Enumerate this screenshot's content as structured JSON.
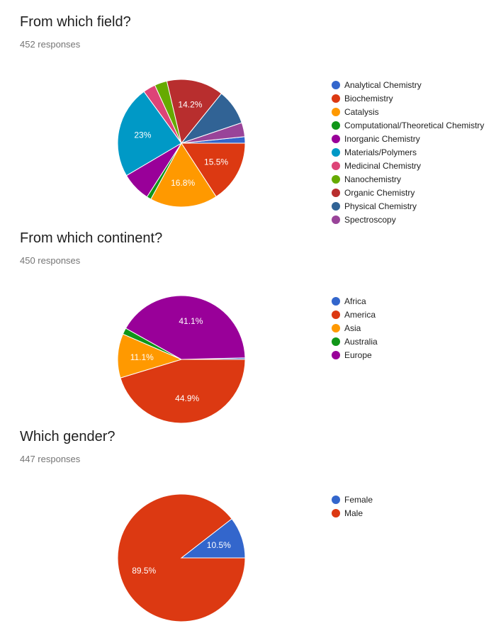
{
  "chart_data": [
    {
      "type": "pie",
      "title": "From which field?",
      "responses": "452 responses",
      "legend_position": "right",
      "slices": [
        {
          "label": "Analytical Chemistry",
          "value": 1.6,
          "color": "#3366cc",
          "show_label": false
        },
        {
          "label": "Biochemistry",
          "value": 15.5,
          "color": "#dc3912",
          "show_label": true
        },
        {
          "label": "Catalysis",
          "value": 16.8,
          "color": "#ff9900",
          "show_label": true
        },
        {
          "label": "Computational/Theoretical Chemistry",
          "value": 1.1,
          "color": "#109618",
          "show_label": false
        },
        {
          "label": "Inorganic Chemistry",
          "value": 7.3,
          "color": "#990099",
          "show_label": false
        },
        {
          "label": "Materials/Polymers",
          "value": 23,
          "color": "#0099c6",
          "show_label": true
        },
        {
          "label": "Medicinal Chemistry",
          "value": 3.1,
          "color": "#dd4477",
          "show_label": false
        },
        {
          "label": "Nanochemistry",
          "value": 3.1,
          "color": "#66aa00",
          "show_label": false
        },
        {
          "label": "Organic Chemistry",
          "value": 14.2,
          "color": "#b82e2e",
          "show_label": true
        },
        {
          "label": "Physical Chemistry",
          "value": 8.8,
          "color": "#316395",
          "show_label": false
        },
        {
          "label": "Spectroscopy",
          "value": 3.5,
          "color": "#994499",
          "show_label": false
        }
      ]
    },
    {
      "type": "pie",
      "title": "From which continent?",
      "responses": "450 responses",
      "legend_position": "right",
      "slices": [
        {
          "label": "Africa",
          "value": 0.4,
          "color": "#3366cc",
          "show_label": false
        },
        {
          "label": "America",
          "value": 44.9,
          "color": "#dc3912",
          "show_label": true
        },
        {
          "label": "Asia",
          "value": 11.1,
          "color": "#ff9900",
          "show_label": true
        },
        {
          "label": "Australia",
          "value": 1.6,
          "color": "#109618",
          "show_label": false
        },
        {
          "label": "Europe",
          "value": 41.1,
          "color": "#990099",
          "show_label": true
        }
      ]
    },
    {
      "type": "pie",
      "title": "Which gender?",
      "responses": "447 responses",
      "legend_position": "right",
      "slices": [
        {
          "label": "Female",
          "value": 10.5,
          "color": "#3366cc",
          "show_label": true
        },
        {
          "label": "Male",
          "value": 89.5,
          "color": "#dc3912",
          "show_label": true
        }
      ]
    }
  ]
}
